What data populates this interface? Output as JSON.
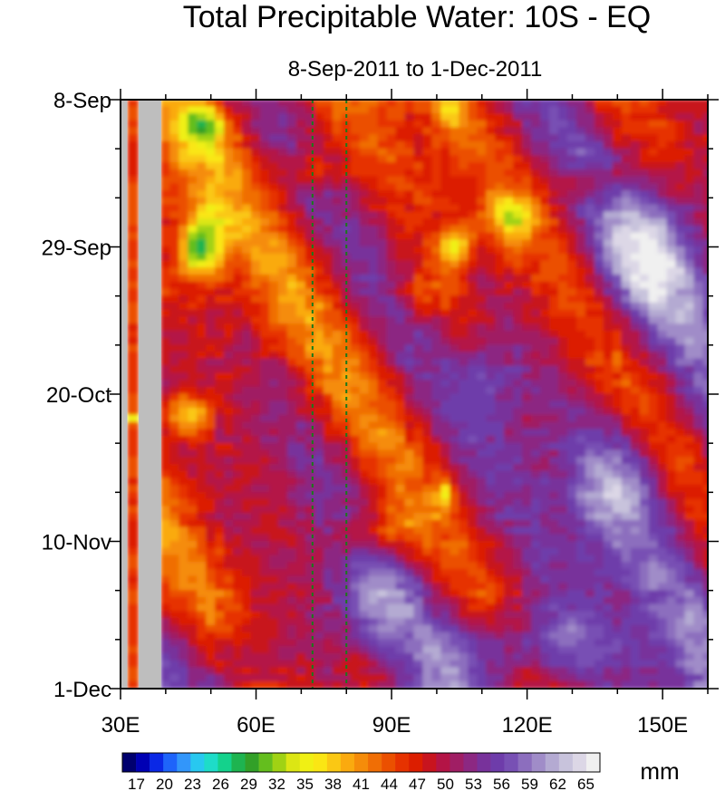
{
  "chart_data": {
    "type": "heatmap",
    "title": "Total Precipitable Water: 10S - EQ",
    "subtitle": "8-Sep-2011 to 1-Dec-2011",
    "xlabel": "",
    "ylabel": "",
    "x_range": [
      30,
      160
    ],
    "x_ticks": [
      {
        "value": 30,
        "label": "30E"
      },
      {
        "value": 60,
        "label": "60E"
      },
      {
        "value": 90,
        "label": "90E"
      },
      {
        "value": 120,
        "label": "120E"
      },
      {
        "value": 150,
        "label": "150E"
      }
    ],
    "y_range_days": [
      0,
      84
    ],
    "y_ticks": [
      {
        "value": 0,
        "label": "8-Sep"
      },
      {
        "value": 21,
        "label": "29-Sep"
      },
      {
        "value": 42,
        "label": "20-Oct"
      },
      {
        "value": 63,
        "label": "10-Nov"
      },
      {
        "value": 84,
        "label": "1-Dec"
      }
    ],
    "dashed_lines_lon": [
      72.5,
      80
    ],
    "missing_data_lon": [
      [
        30,
        31.5
      ],
      [
        34,
        39
      ]
    ],
    "colorbar": {
      "unit": "mm",
      "min": 15.5,
      "max": 66.5,
      "labels": [
        "17",
        "20",
        "23",
        "26",
        "29",
        "32",
        "35",
        "38",
        "41",
        "44",
        "47",
        "50",
        "53",
        "56",
        "59",
        "62",
        "65"
      ],
      "colors": [
        "#00006e",
        "#0000b4",
        "#0a28e6",
        "#1e64fa",
        "#3296fa",
        "#28c8f0",
        "#1edcc8",
        "#14d28c",
        "#1eb450",
        "#32a028",
        "#64be1e",
        "#a0d214",
        "#dce614",
        "#f0f014",
        "#fae614",
        "#fac814",
        "#faaa0f",
        "#f58c0a",
        "#f06e05",
        "#eb5000",
        "#e63200",
        "#dc1e00",
        "#c8141e",
        "#b41446",
        "#a01e64",
        "#8c2882",
        "#78329b",
        "#6e3caa",
        "#7850b4",
        "#8c6ebe",
        "#a08cc8",
        "#b4aad2",
        "#c8c3dc",
        "#dcd7e6",
        "#f0f0f0"
      ]
    }
  }
}
